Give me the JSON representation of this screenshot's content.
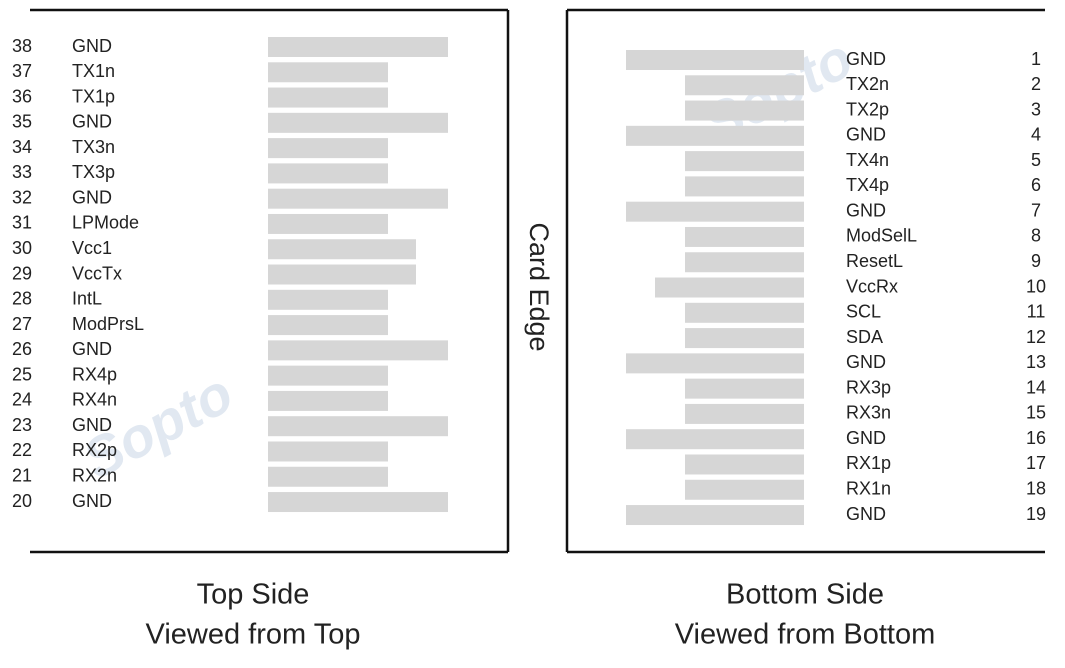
{
  "watermark": "Sopto",
  "card_edge": "Card Edge",
  "top_side": {
    "title": "Top Side",
    "subtitle": "Viewed from Top",
    "pins": [
      {
        "number": 38,
        "name": "GND"
      },
      {
        "number": 37,
        "name": "TX1n"
      },
      {
        "number": 36,
        "name": "TX1p"
      },
      {
        "number": 35,
        "name": "GND"
      },
      {
        "number": 34,
        "name": "TX3n"
      },
      {
        "number": 33,
        "name": "TX3p"
      },
      {
        "number": 32,
        "name": "GND"
      },
      {
        "number": 31,
        "name": "LPMode"
      },
      {
        "number": 30,
        "name": "Vcc1"
      },
      {
        "number": 29,
        "name": "VccTx"
      },
      {
        "number": 28,
        "name": "IntL"
      },
      {
        "number": 27,
        "name": "ModPrsL"
      },
      {
        "number": 26,
        "name": "GND"
      },
      {
        "number": 25,
        "name": "RX4p"
      },
      {
        "number": 24,
        "name": "RX4n"
      },
      {
        "number": 23,
        "name": "GND"
      },
      {
        "number": 22,
        "name": "RX2p"
      },
      {
        "number": 21,
        "name": "RX2n"
      },
      {
        "number": 20,
        "name": "GND"
      }
    ]
  },
  "bottom_side": {
    "title": "Bottom Side",
    "subtitle": "Viewed from Bottom",
    "pins": [
      {
        "number": 1,
        "name": "GND"
      },
      {
        "number": 2,
        "name": "TX2n"
      },
      {
        "number": 3,
        "name": "TX2p"
      },
      {
        "number": 4,
        "name": "GND"
      },
      {
        "number": 5,
        "name": "TX4n"
      },
      {
        "number": 6,
        "name": "TX4p"
      },
      {
        "number": 7,
        "name": "GND"
      },
      {
        "number": 8,
        "name": "ModSelL"
      },
      {
        "number": 9,
        "name": "ResetL"
      },
      {
        "number": 10,
        "name": "VccRx"
      },
      {
        "number": 11,
        "name": "SCL"
      },
      {
        "number": 12,
        "name": "SDA"
      },
      {
        "number": 13,
        "name": "GND"
      },
      {
        "number": 14,
        "name": "RX3p"
      },
      {
        "number": 15,
        "name": "RX3n"
      },
      {
        "number": 16,
        "name": "GND"
      },
      {
        "number": 17,
        "name": "RX1p"
      },
      {
        "number": 18,
        "name": "RX1n"
      },
      {
        "number": 19,
        "name": "GND"
      }
    ]
  }
}
